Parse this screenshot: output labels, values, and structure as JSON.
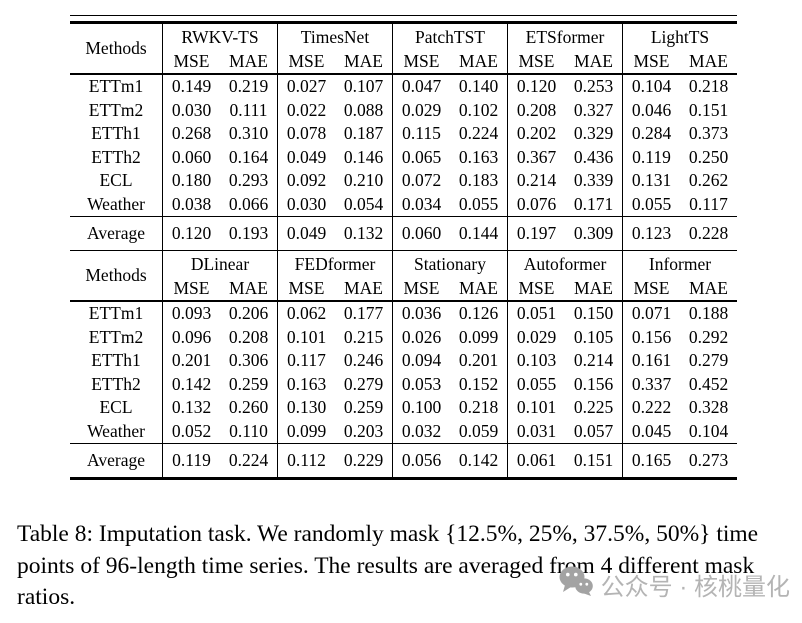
{
  "tables": [
    {
      "methods_label": "Methods",
      "sub_headers": [
        "MSE",
        "MAE"
      ],
      "groups": [
        "RWKV-TS",
        "TimesNet",
        "PatchTST",
        "ETSformer",
        "LightTS"
      ],
      "rows": [
        {
          "label": "ETTm1",
          "values": [
            "0.149",
            "0.219",
            "0.027",
            "0.107",
            "0.047",
            "0.140",
            "0.120",
            "0.253",
            "0.104",
            "0.218"
          ]
        },
        {
          "label": "ETTm2",
          "values": [
            "0.030",
            "0.111",
            "0.022",
            "0.088",
            "0.029",
            "0.102",
            "0.208",
            "0.327",
            "0.046",
            "0.151"
          ]
        },
        {
          "label": "ETTh1",
          "values": [
            "0.268",
            "0.310",
            "0.078",
            "0.187",
            "0.115",
            "0.224",
            "0.202",
            "0.329",
            "0.284",
            "0.373"
          ]
        },
        {
          "label": "ETTh2",
          "values": [
            "0.060",
            "0.164",
            "0.049",
            "0.146",
            "0.065",
            "0.163",
            "0.367",
            "0.436",
            "0.119",
            "0.250"
          ]
        },
        {
          "label": "ECL",
          "values": [
            "0.180",
            "0.293",
            "0.092",
            "0.210",
            "0.072",
            "0.183",
            "0.214",
            "0.339",
            "0.131",
            "0.262"
          ]
        },
        {
          "label": "Weather",
          "values": [
            "0.038",
            "0.066",
            "0.030",
            "0.054",
            "0.034",
            "0.055",
            "0.076",
            "0.171",
            "0.055",
            "0.117"
          ]
        }
      ],
      "average": {
        "label": "Average",
        "values": [
          "0.120",
          "0.193",
          "0.049",
          "0.132",
          "0.060",
          "0.144",
          "0.197",
          "0.309",
          "0.123",
          "0.228"
        ]
      }
    },
    {
      "methods_label": "Methods",
      "sub_headers": [
        "MSE",
        "MAE"
      ],
      "groups": [
        "DLinear",
        "FEDformer",
        "Stationary",
        "Autoformer",
        "Informer"
      ],
      "rows": [
        {
          "label": "ETTm1",
          "values": [
            "0.093",
            "0.206",
            "0.062",
            "0.177",
            "0.036",
            "0.126",
            "0.051",
            "0.150",
            "0.071",
            "0.188"
          ]
        },
        {
          "label": "ETTm2",
          "values": [
            "0.096",
            "0.208",
            "0.101",
            "0.215",
            "0.026",
            "0.099",
            "0.029",
            "0.105",
            "0.156",
            "0.292"
          ]
        },
        {
          "label": "ETTh1",
          "values": [
            "0.201",
            "0.306",
            "0.117",
            "0.246",
            "0.094",
            "0.201",
            "0.103",
            "0.214",
            "0.161",
            "0.279"
          ]
        },
        {
          "label": "ETTh2",
          "values": [
            "0.142",
            "0.259",
            "0.163",
            "0.279",
            "0.053",
            "0.152",
            "0.055",
            "0.156",
            "0.337",
            "0.452"
          ]
        },
        {
          "label": "ECL",
          "values": [
            "0.132",
            "0.260",
            "0.130",
            "0.259",
            "0.100",
            "0.218",
            "0.101",
            "0.225",
            "0.222",
            "0.328"
          ]
        },
        {
          "label": "Weather",
          "values": [
            "0.052",
            "0.110",
            "0.099",
            "0.203",
            "0.032",
            "0.059",
            "0.031",
            "0.057",
            "0.045",
            "0.104"
          ]
        }
      ],
      "average": {
        "label": "Average",
        "values": [
          "0.119",
          "0.224",
          "0.112",
          "0.229",
          "0.056",
          "0.142",
          "0.061",
          "0.151",
          "0.165",
          "0.273"
        ]
      }
    }
  ],
  "caption": "Table 8: Imputation task. We randomly mask {12.5%, 25%, 37.5%, 50%} time points of 96-length time series. The results are averaged from 4 different mask ratios.",
  "watermark": {
    "icon": "wechat-icon",
    "text": "公众号 · 核桃量化"
  },
  "colors": {
    "text": "#000000",
    "rule": "#000000",
    "watermark_gray": "#b4b4b4",
    "watermark_icon_gray": "#a3a3a3"
  }
}
